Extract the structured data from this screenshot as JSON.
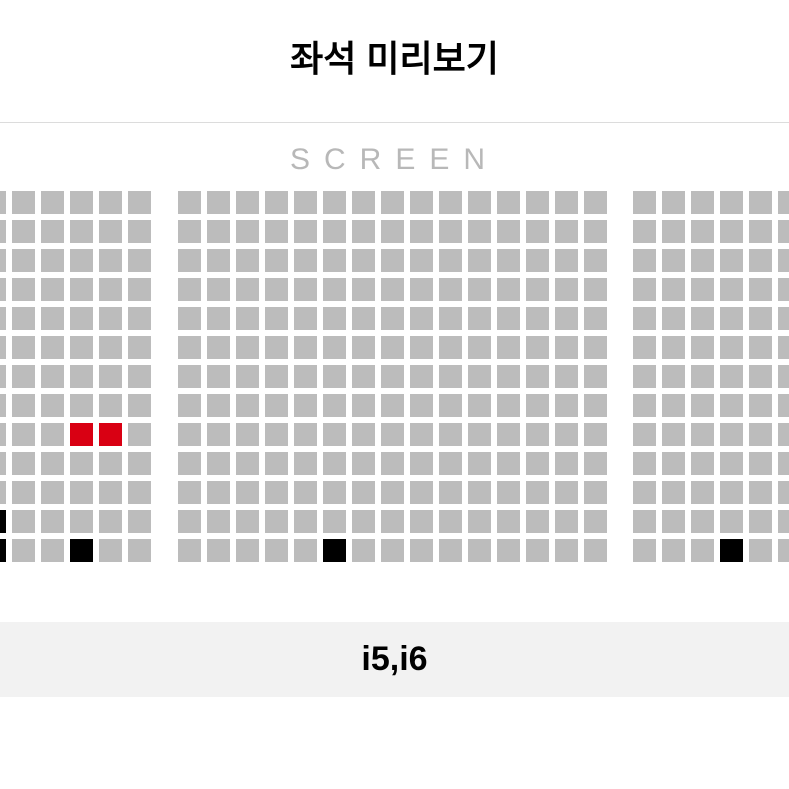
{
  "title": "좌석 미리보기",
  "screen_label": "SCREEN",
  "selected_seats_label": "i5,i6",
  "colors": {
    "available": "#bcbcbc",
    "selected": "#d90013",
    "occupied": "#000000",
    "empty": "transparent",
    "background": "#ffffff",
    "divider": "#dcdcdc",
    "footer_bg": "#f2f2f2",
    "screen_text": "#b8b8b8"
  },
  "layout": {
    "seat_size": 23,
    "seat_gap": 6,
    "rows": 13
  },
  "sections": {
    "left": {
      "cols": 6,
      "rows": [
        [
          "a",
          "a",
          "a",
          "a",
          "a",
          "a"
        ],
        [
          "a",
          "a",
          "a",
          "a",
          "a",
          "a"
        ],
        [
          "a",
          "a",
          "a",
          "a",
          "a",
          "a"
        ],
        [
          "a",
          "a",
          "a",
          "a",
          "a",
          "a"
        ],
        [
          "a",
          "a",
          "a",
          "a",
          "a",
          "a"
        ],
        [
          "a",
          "a",
          "a",
          "a",
          "a",
          "a"
        ],
        [
          "a",
          "a",
          "a",
          "a",
          "a",
          "a"
        ],
        [
          "a",
          "a",
          "a",
          "a",
          "a",
          "a"
        ],
        [
          "a",
          "a",
          "a",
          "s",
          "s",
          "a"
        ],
        [
          "a",
          "a",
          "a",
          "a",
          "a",
          "a"
        ],
        [
          "a",
          "a",
          "a",
          "a",
          "a",
          "a"
        ],
        [
          "o",
          "a",
          "a",
          "a",
          "a",
          "a"
        ],
        [
          "o",
          "a",
          "a",
          "o",
          "a",
          "a"
        ]
      ]
    },
    "center": {
      "cols": 15,
      "rows": [
        [
          "a",
          "a",
          "a",
          "a",
          "a",
          "a",
          "a",
          "a",
          "a",
          "a",
          "a",
          "a",
          "a",
          "a",
          "a"
        ],
        [
          "a",
          "a",
          "a",
          "a",
          "a",
          "a",
          "a",
          "a",
          "a",
          "a",
          "a",
          "a",
          "a",
          "a",
          "a"
        ],
        [
          "a",
          "a",
          "a",
          "a",
          "a",
          "a",
          "a",
          "a",
          "a",
          "a",
          "a",
          "a",
          "a",
          "a",
          "a"
        ],
        [
          "a",
          "a",
          "a",
          "a",
          "a",
          "a",
          "a",
          "a",
          "a",
          "a",
          "a",
          "a",
          "a",
          "a",
          "a"
        ],
        [
          "a",
          "a",
          "a",
          "a",
          "a",
          "a",
          "a",
          "a",
          "a",
          "a",
          "a",
          "a",
          "a",
          "a",
          "a"
        ],
        [
          "a",
          "a",
          "a",
          "a",
          "a",
          "a",
          "a",
          "a",
          "a",
          "a",
          "a",
          "a",
          "a",
          "a",
          "a"
        ],
        [
          "a",
          "a",
          "a",
          "a",
          "a",
          "a",
          "a",
          "a",
          "a",
          "a",
          "a",
          "a",
          "a",
          "a",
          "a"
        ],
        [
          "a",
          "a",
          "a",
          "a",
          "a",
          "a",
          "a",
          "a",
          "a",
          "a",
          "a",
          "a",
          "a",
          "a",
          "a"
        ],
        [
          "a",
          "a",
          "a",
          "a",
          "a",
          "a",
          "a",
          "a",
          "a",
          "a",
          "a",
          "a",
          "a",
          "a",
          "a"
        ],
        [
          "a",
          "a",
          "a",
          "a",
          "a",
          "a",
          "a",
          "a",
          "a",
          "a",
          "a",
          "a",
          "a",
          "a",
          "a"
        ],
        [
          "a",
          "a",
          "a",
          "a",
          "a",
          "a",
          "a",
          "a",
          "a",
          "a",
          "a",
          "a",
          "a",
          "a",
          "a"
        ],
        [
          "a",
          "a",
          "a",
          "a",
          "a",
          "a",
          "a",
          "a",
          "a",
          "a",
          "a",
          "a",
          "a",
          "a",
          "a"
        ],
        [
          "a",
          "a",
          "a",
          "a",
          "a",
          "o",
          "a",
          "a",
          "a",
          "a",
          "a",
          "a",
          "a",
          "a",
          "a"
        ]
      ]
    },
    "right": {
      "cols": 6,
      "rows": [
        [
          "a",
          "a",
          "a",
          "a",
          "a",
          "a"
        ],
        [
          "a",
          "a",
          "a",
          "a",
          "a",
          "a"
        ],
        [
          "a",
          "a",
          "a",
          "a",
          "a",
          "a"
        ],
        [
          "a",
          "a",
          "a",
          "a",
          "a",
          "a"
        ],
        [
          "a",
          "a",
          "a",
          "a",
          "a",
          "a"
        ],
        [
          "a",
          "a",
          "a",
          "a",
          "a",
          "a"
        ],
        [
          "a",
          "a",
          "a",
          "a",
          "a",
          "a"
        ],
        [
          "a",
          "a",
          "a",
          "a",
          "a",
          "a"
        ],
        [
          "a",
          "a",
          "a",
          "a",
          "a",
          "a"
        ],
        [
          "a",
          "a",
          "a",
          "a",
          "a",
          "a"
        ],
        [
          "a",
          "a",
          "a",
          "a",
          "a",
          "a"
        ],
        [
          "a",
          "a",
          "a",
          "a",
          "a",
          "a"
        ],
        [
          "a",
          "a",
          "a",
          "o",
          "a",
          "a"
        ]
      ]
    }
  },
  "status_map": {
    "a": "available",
    "s": "selected",
    "o": "occupied",
    "e": "empty"
  }
}
